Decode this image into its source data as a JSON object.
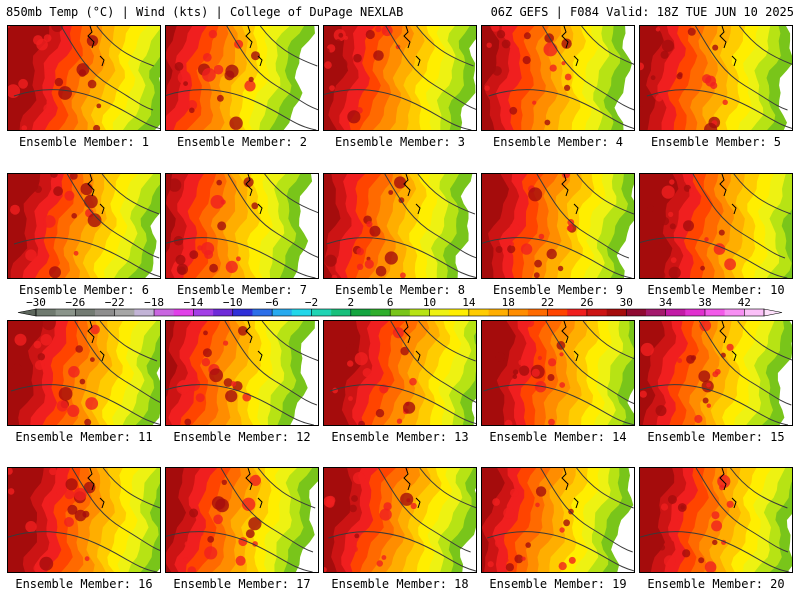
{
  "header": {
    "left_text": "850mb Temp (°C) | Wind (kts) | College of DuPage NEXLAB",
    "right_text": "06Z GEFS | F084 Valid: 18Z TUE JUN 10 2025"
  },
  "label_prefix": "Ensemble Member: ",
  "members": [
    {
      "label": "Ensemble Member: 1"
    },
    {
      "label": "Ensemble Member: 2"
    },
    {
      "label": "Ensemble Member: 3"
    },
    {
      "label": "Ensemble Member: 4"
    },
    {
      "label": "Ensemble Member: 5"
    },
    {
      "label": "Ensemble Member: 6"
    },
    {
      "label": "Ensemble Member: 7"
    },
    {
      "label": "Ensemble Member: 8"
    },
    {
      "label": "Ensemble Member: 9"
    },
    {
      "label": "Ensemble Member: 10"
    },
    {
      "label": "Ensemble Member: 11"
    },
    {
      "label": "Ensemble Member: 12"
    },
    {
      "label": "Ensemble Member: 13"
    },
    {
      "label": "Ensemble Member: 14"
    },
    {
      "label": "Ensemble Member: 15"
    },
    {
      "label": "Ensemble Member: 16"
    },
    {
      "label": "Ensemble Member: 17"
    },
    {
      "label": "Ensemble Member: 18"
    },
    {
      "label": "Ensemble Member: 19"
    },
    {
      "label": "Ensemble Member: 20"
    }
  ],
  "colorbar": {
    "tick_labels": [
      "−30",
      "−26",
      "−22",
      "−18",
      "−14",
      "−10",
      "−6",
      "−2",
      "2",
      "6",
      "10",
      "14",
      "18",
      "22",
      "26",
      "30",
      "34",
      "38",
      "42"
    ],
    "colors": [
      "#6f7a6f",
      "#8a948a",
      "#737b73",
      "#8e8e8e",
      "#a6a6a6",
      "#c2b3d6",
      "#c966e0",
      "#e040e8",
      "#a23ee6",
      "#6e2ad8",
      "#2f2fd8",
      "#2b6ee8",
      "#27aaef",
      "#22d7ea",
      "#20d4b4",
      "#19c07c",
      "#14a540",
      "#2fae2c",
      "#79c51a",
      "#b7e314",
      "#eef212",
      "#ffee00",
      "#ffcc00",
      "#ffae00",
      "#ff8d00",
      "#ff6a00",
      "#ff4400",
      "#f01f1f",
      "#cc1414",
      "#a50c0c",
      "#8f0a32",
      "#a3196c",
      "#c21aa6",
      "#e030cf",
      "#f25ae9",
      "#f78ff3",
      "#fbc0f8"
    ]
  }
}
